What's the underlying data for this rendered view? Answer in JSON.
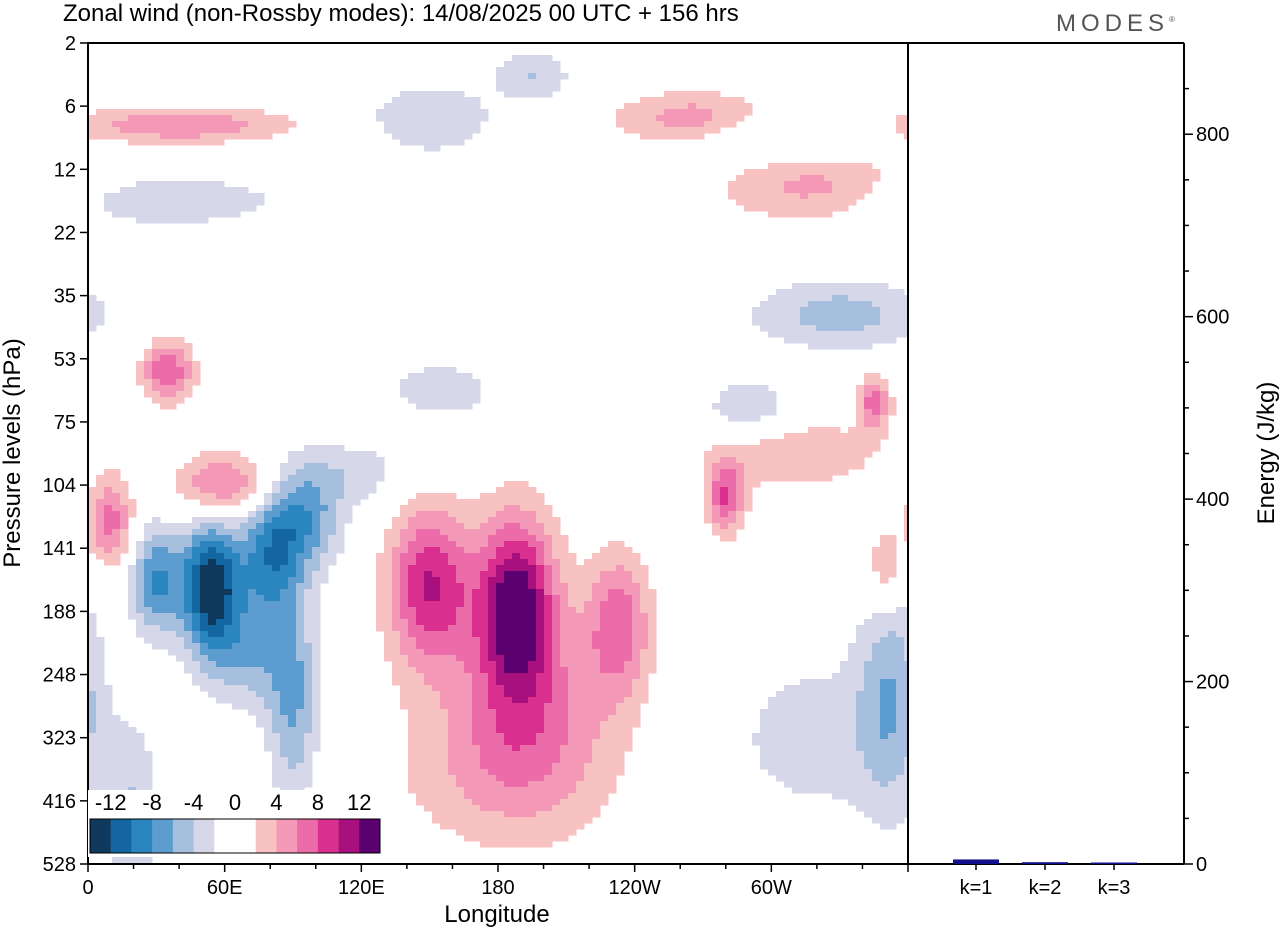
{
  "header": {
    "title": "Zonal wind (non-Rossby modes):  14/08/2025  00 UTC  + 156 hrs",
    "logo": "MODES",
    "logo_mark": "®"
  },
  "colors": {
    "scale": [
      "#0f3a5e",
      "#1466a0",
      "#2b86c0",
      "#5d9ccf",
      "#a7bfdf",
      "#d6d8ea",
      "#ffffff",
      "#ffffff",
      "#f8c2c3",
      "#f49ab8",
      "#ec6ba9",
      "#d9308f",
      "#a8107d",
      "#5b006f"
    ],
    "bar": "#10108c"
  },
  "chart_data": [
    {
      "type": "heatmap",
      "title": "Zonal wind (non-Rossby modes)",
      "xlabel": "Longitude",
      "ylabel": "Pressure levels (hPa)",
      "x_ticks": [
        "0",
        "60E",
        "120E",
        "180",
        "120W",
        "60W"
      ],
      "x_tick_degrees": [
        0,
        60,
        120,
        180,
        240,
        300
      ],
      "xlim": [
        0,
        360
      ],
      "y_ticks": [
        "2",
        "6",
        "12",
        "22",
        "35",
        "53",
        "75",
        "104",
        "141",
        "188",
        "248",
        "323",
        "416",
        "528"
      ],
      "colorbar": {
        "levels": [
          -12,
          -8,
          -4,
          0,
          4,
          8,
          12
        ],
        "labels": [
          "-12",
          "-8",
          "-4",
          "0",
          "4",
          "8",
          "12"
        ]
      },
      "features": [
        {
          "lon": 54,
          "level_index": 8.6,
          "value": -14,
          "sx": 9,
          "sy": 0.7
        },
        {
          "lon": 30,
          "level_index": 8.5,
          "value": -8,
          "sx": 8,
          "sy": 0.6
        },
        {
          "lon": 80,
          "level_index": 8.2,
          "value": -8,
          "sx": 10,
          "sy": 0.7
        },
        {
          "lon": 95,
          "level_index": 7.5,
          "value": -7,
          "sx": 12,
          "sy": 0.6
        },
        {
          "lon": 120,
          "level_index": 6.8,
          "value": -3,
          "sx": 18,
          "sy": 0.35
        },
        {
          "lon": 90,
          "level_index": 10.5,
          "value": -6,
          "sx": 8,
          "sy": 1.1
        },
        {
          "lon": 70,
          "level_index": 9.7,
          "value": -5,
          "sx": 14,
          "sy": 0.6
        },
        {
          "lon": 155,
          "level_index": 5.5,
          "value": -3,
          "sx": 20,
          "sy": 0.4
        },
        {
          "lon": 150,
          "level_index": 8.6,
          "value": 10,
          "sx": 13,
          "sy": 0.9
        },
        {
          "lon": 188,
          "level_index": 8.9,
          "value": 13,
          "sx": 12,
          "sy": 1.0
        },
        {
          "lon": 233,
          "level_index": 9.2,
          "value": 7,
          "sx": 10,
          "sy": 0.8
        },
        {
          "lon": 195,
          "level_index": 10.6,
          "value": 5,
          "sx": 26,
          "sy": 1.2
        },
        {
          "lon": 178,
          "level_index": 11.5,
          "value": 3,
          "sx": 34,
          "sy": 0.9
        },
        {
          "lon": 10,
          "level_index": 7.6,
          "value": 7,
          "sx": 7,
          "sy": 0.5
        },
        {
          "lon": 60,
          "level_index": 7.0,
          "value": 7,
          "sx": 15,
          "sy": 0.35
        },
        {
          "lon": 35,
          "level_index": 5.2,
          "value": 8,
          "sx": 8,
          "sy": 0.35
        },
        {
          "lon": 280,
          "level_index": 7.2,
          "value": 8,
          "sx": 6,
          "sy": 0.4
        },
        {
          "lon": 310,
          "level_index": 6.5,
          "value": 4,
          "sx": 28,
          "sy": 0.4
        },
        {
          "lon": 345,
          "level_index": 5.7,
          "value": 7,
          "sx": 5,
          "sy": 0.3
        },
        {
          "lon": 330,
          "level_index": 4.3,
          "value": -5,
          "sx": 28,
          "sy": 0.4
        },
        {
          "lon": 290,
          "level_index": 5.8,
          "value": -4,
          "sx": 14,
          "sy": 0.35
        },
        {
          "lon": 320,
          "level_index": 2.3,
          "value": 5,
          "sx": 30,
          "sy": 0.4
        },
        {
          "lon": 270,
          "level_index": 1.2,
          "value": 6,
          "sx": 26,
          "sy": 0.3
        },
        {
          "lon": 300,
          "level_index": 1.4,
          "value": -4,
          "sx": 26,
          "sy": 0.3
        },
        {
          "lon": 40,
          "level_index": 1.3,
          "value": 6,
          "sx": 34,
          "sy": 0.2
        },
        {
          "lon": 30,
          "level_index": 2.5,
          "value": -4,
          "sx": 40,
          "sy": 0.3
        },
        {
          "lon": 150,
          "level_index": 1.2,
          "value": -4,
          "sx": 20,
          "sy": 0.4
        },
        {
          "lon": 195,
          "level_index": 0.5,
          "value": -4,
          "sx": 12,
          "sy": 0.3
        },
        {
          "lon": 352,
          "level_index": 10.2,
          "value": -5,
          "sx": 10,
          "sy": 1.4
        },
        {
          "lon": 320,
          "level_index": 11.0,
          "value": -3,
          "sx": 30,
          "sy": 1.0
        },
        {
          "lon": 350,
          "level_index": 8.3,
          "value": 5,
          "sx": 6,
          "sy": 0.5
        },
        {
          "lon": 20,
          "level_index": 12.2,
          "value": -4,
          "sx": 8,
          "sy": 1.0
        }
      ]
    },
    {
      "type": "bar",
      "categories": [
        "k=1",
        "k=2",
        "k=3"
      ],
      "values": [
        5,
        2,
        1
      ],
      "ylabel": "Energy (J/kg)",
      "ylim": [
        0,
        900
      ],
      "y_ticks": [
        0,
        200,
        400,
        600,
        800
      ]
    }
  ]
}
